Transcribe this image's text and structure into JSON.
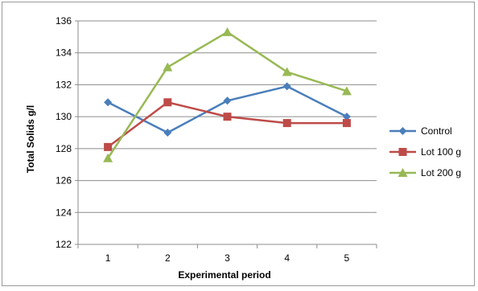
{
  "chart_data": {
    "type": "line",
    "title": "",
    "xlabel": "Experimental period",
    "ylabel": "Total Solids g/l",
    "categories": [
      "1",
      "2",
      "3",
      "4",
      "5"
    ],
    "ylim": [
      122,
      136
    ],
    "yticks": [
      122,
      124,
      126,
      128,
      130,
      132,
      134,
      136
    ],
    "grid": "horizontal",
    "legend_position": "right",
    "series": [
      {
        "name": "Control",
        "values": [
          130.9,
          129.0,
          131.0,
          131.9,
          130.0
        ],
        "color": "#4A7EBB",
        "marker": "diamond"
      },
      {
        "name": "Lot 100 g",
        "values": [
          128.1,
          130.9,
          130.0,
          129.6,
          129.6
        ],
        "color": "#BE4B48",
        "marker": "square"
      },
      {
        "name": "Lot 200 g",
        "values": [
          127.4,
          133.1,
          135.3,
          132.8,
          131.6
        ],
        "color": "#98B954",
        "marker": "triangle"
      }
    ]
  }
}
